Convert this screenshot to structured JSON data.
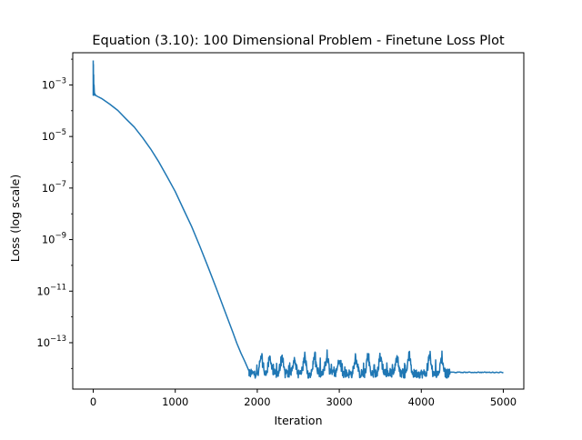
{
  "chart_data": {
    "type": "line",
    "title": "Equation (3.10): 100 Dimensional Problem - Finetune Loss Plot",
    "xlabel": "Iteration",
    "ylabel": "Loss (log scale)",
    "yscale": "log",
    "xlim": [
      -250,
      5250
    ],
    "ylim_log10": [
      -14.8,
      -1.75
    ],
    "grid": false,
    "x_ticks": [
      {
        "value": 0,
        "label": "0"
      },
      {
        "value": 1000,
        "label": "1000"
      },
      {
        "value": 2000,
        "label": "2000"
      },
      {
        "value": 3000,
        "label": "3000"
      },
      {
        "value": 4000,
        "label": "4000"
      },
      {
        "value": 5000,
        "label": "5000"
      }
    ],
    "y_ticks": [
      {
        "exp": -3,
        "base": "10",
        "sup": "−3"
      },
      {
        "exp": -5,
        "base": "10",
        "sup": "−5"
      },
      {
        "exp": -7,
        "base": "10",
        "sup": "−7"
      },
      {
        "exp": -9,
        "base": "10",
        "sup": "−9"
      },
      {
        "exp": -11,
        "base": "10",
        "sup": "−11"
      },
      {
        "exp": -13,
        "base": "10",
        "sup": "−13"
      }
    ],
    "series": [
      {
        "name": "",
        "color": "#1f77b4",
        "x": [
          0,
          5,
          10,
          20,
          30,
          50,
          100,
          200,
          300,
          400,
          500,
          600,
          700,
          800,
          900,
          1000,
          1100,
          1200,
          1300,
          1400,
          1500,
          1600,
          1700,
          1750,
          1800,
          1850,
          1900
        ],
        "y_log10": [
          -2.05,
          -2.7,
          -3.2,
          -3.35,
          -3.4,
          -3.45,
          -3.55,
          -3.75,
          -4.0,
          -4.3,
          -4.65,
          -5.05,
          -5.5,
          -6.0,
          -6.55,
          -7.15,
          -7.8,
          -8.5,
          -9.25,
          -10.05,
          -10.9,
          -11.75,
          -12.6,
          -13.0,
          -13.4,
          -13.75,
          -14.1
        ],
        "noisy_segment": {
          "x_start": 1900,
          "x_end": 4350,
          "baseline_log10": -14.2,
          "spike_max_log10": -13.25
        },
        "flat_segment": {
          "x_start": 4350,
          "x_end": 5000,
          "y_log10": -14.15
        }
      }
    ]
  },
  "style": {
    "line_color": "#1f77b4",
    "axis_color": "#000000",
    "background": "#ffffff"
  }
}
